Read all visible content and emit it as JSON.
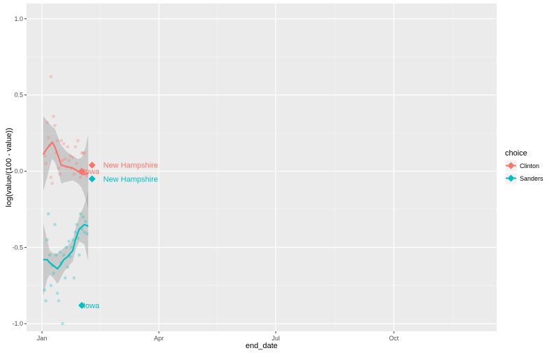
{
  "chart_data": {
    "type": "scatter",
    "xlabel": "end_date",
    "ylabel": "log(value/(100 - value))",
    "x_ticks": [
      {
        "date": "2016-01-01",
        "label": "Jan"
      },
      {
        "date": "2016-04-01",
        "label": "Apr"
      },
      {
        "date": "2016-07-01",
        "label": "Jul"
      },
      {
        "date": "2016-10-01",
        "label": "Oct"
      }
    ],
    "xlim": [
      "2015-12-20",
      "2016-12-20"
    ],
    "y_ticks": [
      -1.0,
      -0.5,
      0.0,
      0.5,
      1.0
    ],
    "y_tick_labels": [
      "-1.0",
      "-0.5",
      "0.0",
      "0.5",
      "1.0"
    ],
    "ylim": [
      -1.05,
      1.1
    ],
    "grid": true,
    "legend": {
      "title": "choice",
      "position": "right",
      "entries": [
        {
          "label": "Clinton",
          "color": "#F8766D"
        },
        {
          "label": "Sanders",
          "color": "#00BFC4"
        }
      ]
    },
    "series": [
      {
        "name": "Clinton",
        "color": "#F8766D",
        "polls": [
          {
            "x": "2016-01-03",
            "y": 0.1
          },
          {
            "x": "2016-01-04",
            "y": 0.05
          },
          {
            "x": "2016-01-05",
            "y": 0.32
          },
          {
            "x": "2016-01-06",
            "y": 0.22
          },
          {
            "x": "2016-01-07",
            "y": 0.17
          },
          {
            "x": "2016-01-08",
            "y": 0.62
          },
          {
            "x": "2016-01-08",
            "y": -0.04
          },
          {
            "x": "2016-01-09",
            "y": -0.08
          },
          {
            "x": "2016-01-10",
            "y": 0.36
          },
          {
            "x": "2016-01-11",
            "y": 0.3
          },
          {
            "x": "2016-01-12",
            "y": 0.12
          },
          {
            "x": "2016-01-13",
            "y": 0.2
          },
          {
            "x": "2016-01-14",
            "y": 0.02
          },
          {
            "x": "2016-01-15",
            "y": -0.02
          },
          {
            "x": "2016-01-16",
            "y": 0.2
          },
          {
            "x": "2016-01-17",
            "y": 0.07
          },
          {
            "x": "2016-01-18",
            "y": 0.18
          },
          {
            "x": "2016-01-19",
            "y": 0.08
          },
          {
            "x": "2016-01-20",
            "y": 0.03
          },
          {
            "x": "2016-01-21",
            "y": 0.16
          },
          {
            "x": "2016-01-22",
            "y": 0.07
          },
          {
            "x": "2016-01-23",
            "y": 0.1
          },
          {
            "x": "2016-01-24",
            "y": 0.02
          },
          {
            "x": "2016-01-25",
            "y": 0.09
          },
          {
            "x": "2016-01-26",
            "y": -0.02
          },
          {
            "x": "2016-01-27",
            "y": 0.16
          },
          {
            "x": "2016-01-28",
            "y": 0.05
          },
          {
            "x": "2016-01-29",
            "y": 0.2
          },
          {
            "x": "2016-01-30",
            "y": 0.0
          },
          {
            "x": "2016-01-31",
            "y": -0.04
          },
          {
            "x": "2016-02-01",
            "y": 0.12
          },
          {
            "x": "2016-02-02",
            "y": 0.12
          },
          {
            "x": "2016-02-02",
            "y": -0.02
          },
          {
            "x": "2016-02-03",
            "y": 0.12
          },
          {
            "x": "2016-02-04",
            "y": 0.0
          },
          {
            "x": "2016-02-05",
            "y": -0.03
          }
        ],
        "smooth": [
          {
            "x": "2016-01-02",
            "y": 0.11
          },
          {
            "x": "2016-01-05",
            "y": 0.15
          },
          {
            "x": "2016-01-08",
            "y": 0.18
          },
          {
            "x": "2016-01-09",
            "y": 0.19
          },
          {
            "x": "2016-01-11",
            "y": 0.16
          },
          {
            "x": "2016-01-14",
            "y": 0.09
          },
          {
            "x": "2016-01-16",
            "y": 0.04
          },
          {
            "x": "2016-01-20",
            "y": 0.03
          },
          {
            "x": "2016-01-25",
            "y": 0.02
          },
          {
            "x": "2016-01-29",
            "y": 0.0
          },
          {
            "x": "2016-02-01",
            "y": -0.02
          },
          {
            "x": "2016-02-04",
            "y": -0.02
          },
          {
            "x": "2016-02-06",
            "y": -0.01
          }
        ],
        "band_upper": [
          0.36,
          0.33,
          0.3,
          0.29,
          0.28,
          0.21,
          0.17,
          0.13,
          0.1,
          0.08,
          0.09,
          0.16,
          0.24
        ],
        "band_lower": [
          -0.13,
          -0.04,
          0.06,
          0.08,
          0.06,
          -0.01,
          -0.08,
          -0.07,
          -0.06,
          -0.08,
          -0.11,
          -0.18,
          -0.25
        ],
        "results": [
          {
            "label": "Iowa",
            "x": "2016-02-01",
            "y": 0.0
          },
          {
            "label": "New Hampshire",
            "x": "2016-02-09",
            "y": 0.04
          }
        ]
      },
      {
        "name": "Sanders",
        "color": "#00BFC4",
        "polls": [
          {
            "x": "2016-01-03",
            "y": -0.78
          },
          {
            "x": "2016-01-04",
            "y": -0.85
          },
          {
            "x": "2016-01-05",
            "y": -0.45
          },
          {
            "x": "2016-01-06",
            "y": -0.28
          },
          {
            "x": "2016-01-07",
            "y": -0.55
          },
          {
            "x": "2016-01-08",
            "y": -0.75
          },
          {
            "x": "2016-01-09",
            "y": -0.62
          },
          {
            "x": "2016-01-10",
            "y": -0.67
          },
          {
            "x": "2016-01-11",
            "y": -0.35
          },
          {
            "x": "2016-01-12",
            "y": -0.55
          },
          {
            "x": "2016-01-13",
            "y": -0.8
          },
          {
            "x": "2016-01-14",
            "y": -0.85
          },
          {
            "x": "2016-01-15",
            "y": -0.53
          },
          {
            "x": "2016-01-16",
            "y": -0.6
          },
          {
            "x": "2016-01-17",
            "y": -1.0
          },
          {
            "x": "2016-01-18",
            "y": -0.55
          },
          {
            "x": "2016-01-19",
            "y": -0.7
          },
          {
            "x": "2016-01-20",
            "y": -0.5
          },
          {
            "x": "2016-01-21",
            "y": -0.63
          },
          {
            "x": "2016-01-22",
            "y": -0.46
          },
          {
            "x": "2016-01-23",
            "y": -0.56
          },
          {
            "x": "2016-01-24",
            "y": -0.5
          },
          {
            "x": "2016-01-25",
            "y": -0.45
          },
          {
            "x": "2016-01-26",
            "y": -0.7
          },
          {
            "x": "2016-01-27",
            "y": -0.4
          },
          {
            "x": "2016-01-28",
            "y": -0.35
          },
          {
            "x": "2016-01-29",
            "y": -0.44
          },
          {
            "x": "2016-01-30",
            "y": -0.55
          },
          {
            "x": "2016-01-31",
            "y": -0.28
          },
          {
            "x": "2016-02-01",
            "y": -0.38
          },
          {
            "x": "2016-02-02",
            "y": -0.3
          },
          {
            "x": "2016-02-03",
            "y": -0.4
          },
          {
            "x": "2016-02-04",
            "y": -0.33
          },
          {
            "x": "2016-02-05",
            "y": -0.41
          }
        ],
        "smooth": [
          {
            "x": "2016-01-02",
            "y": -0.58
          },
          {
            "x": "2016-01-05",
            "y": -0.58
          },
          {
            "x": "2016-01-07",
            "y": -0.6
          },
          {
            "x": "2016-01-10",
            "y": -0.62
          },
          {
            "x": "2016-01-13",
            "y": -0.64
          },
          {
            "x": "2016-01-15",
            "y": -0.62
          },
          {
            "x": "2016-01-18",
            "y": -0.58
          },
          {
            "x": "2016-01-21",
            "y": -0.56
          },
          {
            "x": "2016-01-25",
            "y": -0.52
          },
          {
            "x": "2016-01-27",
            "y": -0.45
          },
          {
            "x": "2016-01-30",
            "y": -0.38
          },
          {
            "x": "2016-02-03",
            "y": -0.35
          },
          {
            "x": "2016-02-06",
            "y": -0.36
          }
        ],
        "band_upper": [
          -0.34,
          -0.45,
          -0.52,
          -0.54,
          -0.54,
          -0.53,
          -0.5,
          -0.49,
          -0.45,
          -0.38,
          -0.3,
          -0.22,
          -0.13
        ],
        "band_lower": [
          -0.82,
          -0.71,
          -0.68,
          -0.7,
          -0.74,
          -0.71,
          -0.66,
          -0.63,
          -0.59,
          -0.52,
          -0.46,
          -0.48,
          -0.59
        ],
        "results": [
          {
            "label": "Iowa",
            "x": "2016-02-01",
            "y": -0.88
          },
          {
            "label": "New Hampshire",
            "x": "2016-02-09",
            "y": -0.05
          }
        ]
      }
    ]
  }
}
